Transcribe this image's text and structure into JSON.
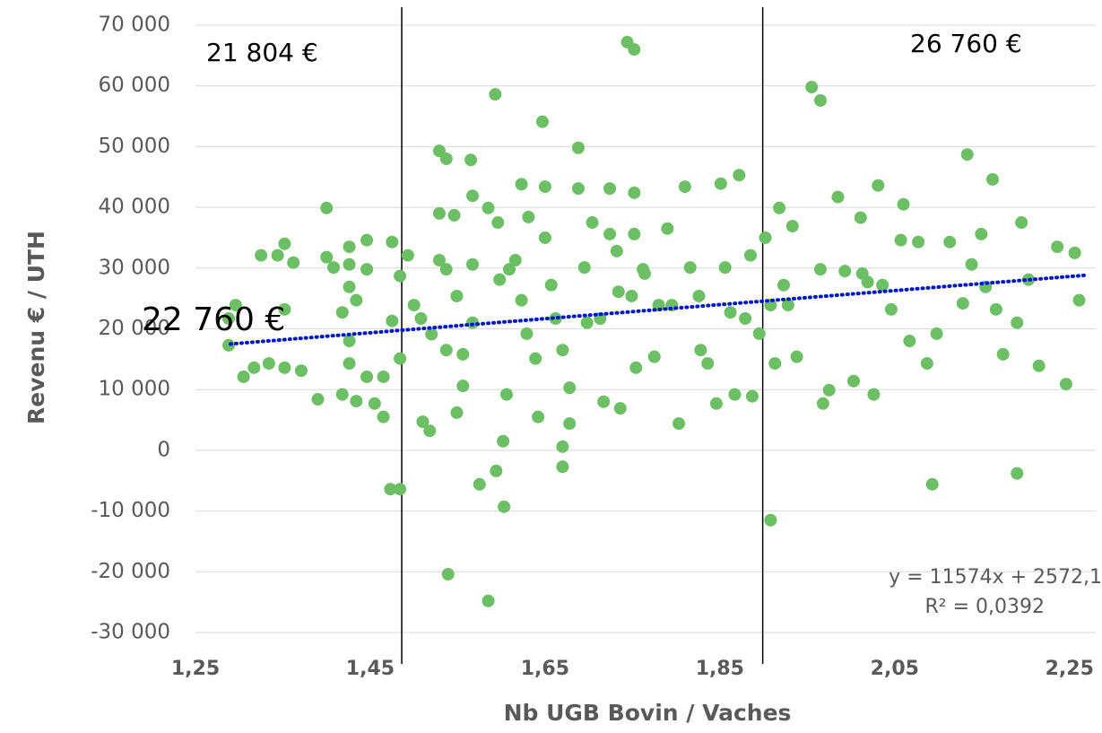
{
  "chart_data": {
    "type": "scatter",
    "x_label": "Nb UGB Bovin / Vaches",
    "y_label": "Revenu € / UTH",
    "color": "#6cbf64",
    "xlim": [
      1.25,
      2.28
    ],
    "ylim": [
      -30000,
      70000
    ],
    "xticks": [
      {
        "value": 1.25,
        "label": "1,25"
      },
      {
        "value": 1.45,
        "label": "1,45"
      },
      {
        "value": 1.65,
        "label": "1,65"
      },
      {
        "value": 1.85,
        "label": "1,85"
      },
      {
        "value": 2.05,
        "label": "2,05"
      },
      {
        "value": 2.25,
        "label": "2,25"
      }
    ],
    "yticks": [
      {
        "value": 70000,
        "label": "70 000"
      },
      {
        "value": 60000,
        "label": "60 000"
      },
      {
        "value": 50000,
        "label": "50 000"
      },
      {
        "value": 40000,
        "label": "40 000"
      },
      {
        "value": 30000,
        "label": "30 000"
      },
      {
        "value": 20000,
        "label": "20 000"
      },
      {
        "value": 10000,
        "label": "10 000"
      },
      {
        "value": 0,
        "label": "0"
      },
      {
        "value": -10000,
        "label": "-10 000"
      },
      {
        "value": -20000,
        "label": "-20 000"
      },
      {
        "value": -30000,
        "label": "-30 000"
      }
    ],
    "grid": true,
    "x": [
      1.288,
      1.296,
      1.288,
      1.305,
      1.317,
      1.325,
      1.334,
      1.344,
      1.352,
      1.352,
      1.352,
      1.362,
      1.371,
      1.39,
      1.4,
      1.4,
      1.408,
      1.418,
      1.418,
      1.426,
      1.426,
      1.426,
      1.426,
      1.426,
      1.434,
      1.434,
      1.446,
      1.446,
      1.446,
      1.455,
      1.465,
      1.465,
      1.473,
      1.475,
      1.475,
      1.484,
      1.484,
      1.484,
      1.493,
      1.5,
      1.508,
      1.51,
      1.518,
      1.52,
      1.529,
      1.529,
      1.529,
      1.537,
      1.537,
      1.537,
      1.539,
      1.546,
      1.549,
      1.549,
      1.556,
      1.556,
      1.565,
      1.567,
      1.567,
      1.567,
      1.575,
      1.585,
      1.585,
      1.593,
      1.594,
      1.596,
      1.598,
      1.602,
      1.603,
      1.606,
      1.609,
      1.616,
      1.623,
      1.623,
      1.629,
      1.631,
      1.639,
      1.647,
      1.642,
      1.65,
      1.65,
      1.657,
      1.662,
      1.67,
      1.67,
      1.67,
      1.678,
      1.678,
      1.688,
      1.688,
      1.695,
      1.698,
      1.704,
      1.713,
      1.717,
      1.724,
      1.724,
      1.732,
      1.734,
      1.736,
      1.744,
      1.749,
      1.752,
      1.752,
      1.752,
      1.754,
      1.762,
      1.764,
      1.775,
      1.78,
      1.79,
      1.795,
      1.803,
      1.81,
      1.816,
      1.826,
      1.828,
      1.836,
      1.846,
      1.851,
      1.856,
      1.862,
      1.867,
      1.872,
      1.879,
      1.885,
      1.887,
      1.895,
      1.902,
      1.908,
      1.908,
      1.913,
      1.918,
      1.923,
      1.928,
      1.933,
      1.938,
      1.955,
      1.965,
      1.965,
      1.968,
      1.975,
      1.985,
      1.993,
      2.003,
      2.011,
      2.013,
      2.019,
      2.026,
      2.031,
      2.036,
      2.046,
      2.057,
      2.06,
      2.067,
      2.077,
      2.087,
      2.093,
      2.098,
      2.113,
      2.128,
      2.133,
      2.138,
      2.149,
      2.154,
      2.162,
      2.166,
      2.174,
      2.19,
      2.19,
      2.195,
      2.203,
      2.215,
      2.236,
      2.246,
      2.256,
      2.261
    ],
    "values": [
      21700,
      23900,
      17300,
      12100,
      13600,
      32100,
      14300,
      32100,
      34000,
      23200,
      13600,
      30900,
      13100,
      8400,
      39900,
      31800,
      30100,
      22700,
      9200,
      30600,
      33500,
      26900,
      18000,
      14300,
      24700,
      8100,
      34600,
      29800,
      12100,
      7700,
      5500,
      12100,
      -6400,
      34300,
      21300,
      -6400,
      28700,
      15100,
      32100,
      23900,
      21700,
      4700,
      3200,
      19100,
      49300,
      39000,
      31300,
      48000,
      29800,
      16500,
      -20400,
      38700,
      25400,
      6200,
      15800,
      10600,
      47800,
      41900,
      30600,
      21000,
      -5600,
      -24800,
      39900,
      58600,
      -3400,
      37500,
      28100,
      1500,
      -9300,
      9200,
      29800,
      31300,
      43800,
      24700,
      19200,
      38400,
      15100,
      54100,
      5500,
      43400,
      35000,
      27200,
      21700,
      16500,
      600,
      -2700,
      10300,
      4400,
      49800,
      43100,
      30100,
      21000,
      37500,
      21700,
      8000,
      43100,
      35600,
      32800,
      26100,
      6900,
      67200,
      25400,
      66000,
      42400,
      35600,
      13600,
      29800,
      29100,
      15400,
      23900,
      36500,
      23900,
      4400,
      43400,
      30100,
      25400,
      16500,
      14300,
      7700,
      43900,
      30100,
      22700,
      9200,
      45300,
      21700,
      32100,
      8900,
      19200,
      35000,
      23900,
      -11500,
      14300,
      39900,
      27200,
      23900,
      36900,
      15400,
      59800,
      57600,
      29800,
      7700,
      9900,
      41700,
      29500,
      11400,
      38300,
      29100,
      27700,
      9200,
      43600,
      27200,
      23200,
      34600,
      40500,
      18000,
      34300,
      14300,
      -5600,
      19200,
      34300,
      24200,
      48700,
      30600,
      35600,
      26900,
      44600,
      23200,
      15800,
      -3800,
      21000,
      37500,
      28100,
      13900,
      33500,
      10900,
      32500,
      24700
    ],
    "trendline": {
      "color": "#0018c8",
      "x": [
        1.29,
        2.27
      ],
      "values": [
        17503,
        28845
      ],
      "equation": "y = 11574x + 2572,1",
      "r2": "R² = 0,0392"
    },
    "reference_lines": [
      1.486,
      1.899
    ],
    "annotations": [
      "21 804 €",
      "26 760 €",
      "22 760 €"
    ]
  }
}
